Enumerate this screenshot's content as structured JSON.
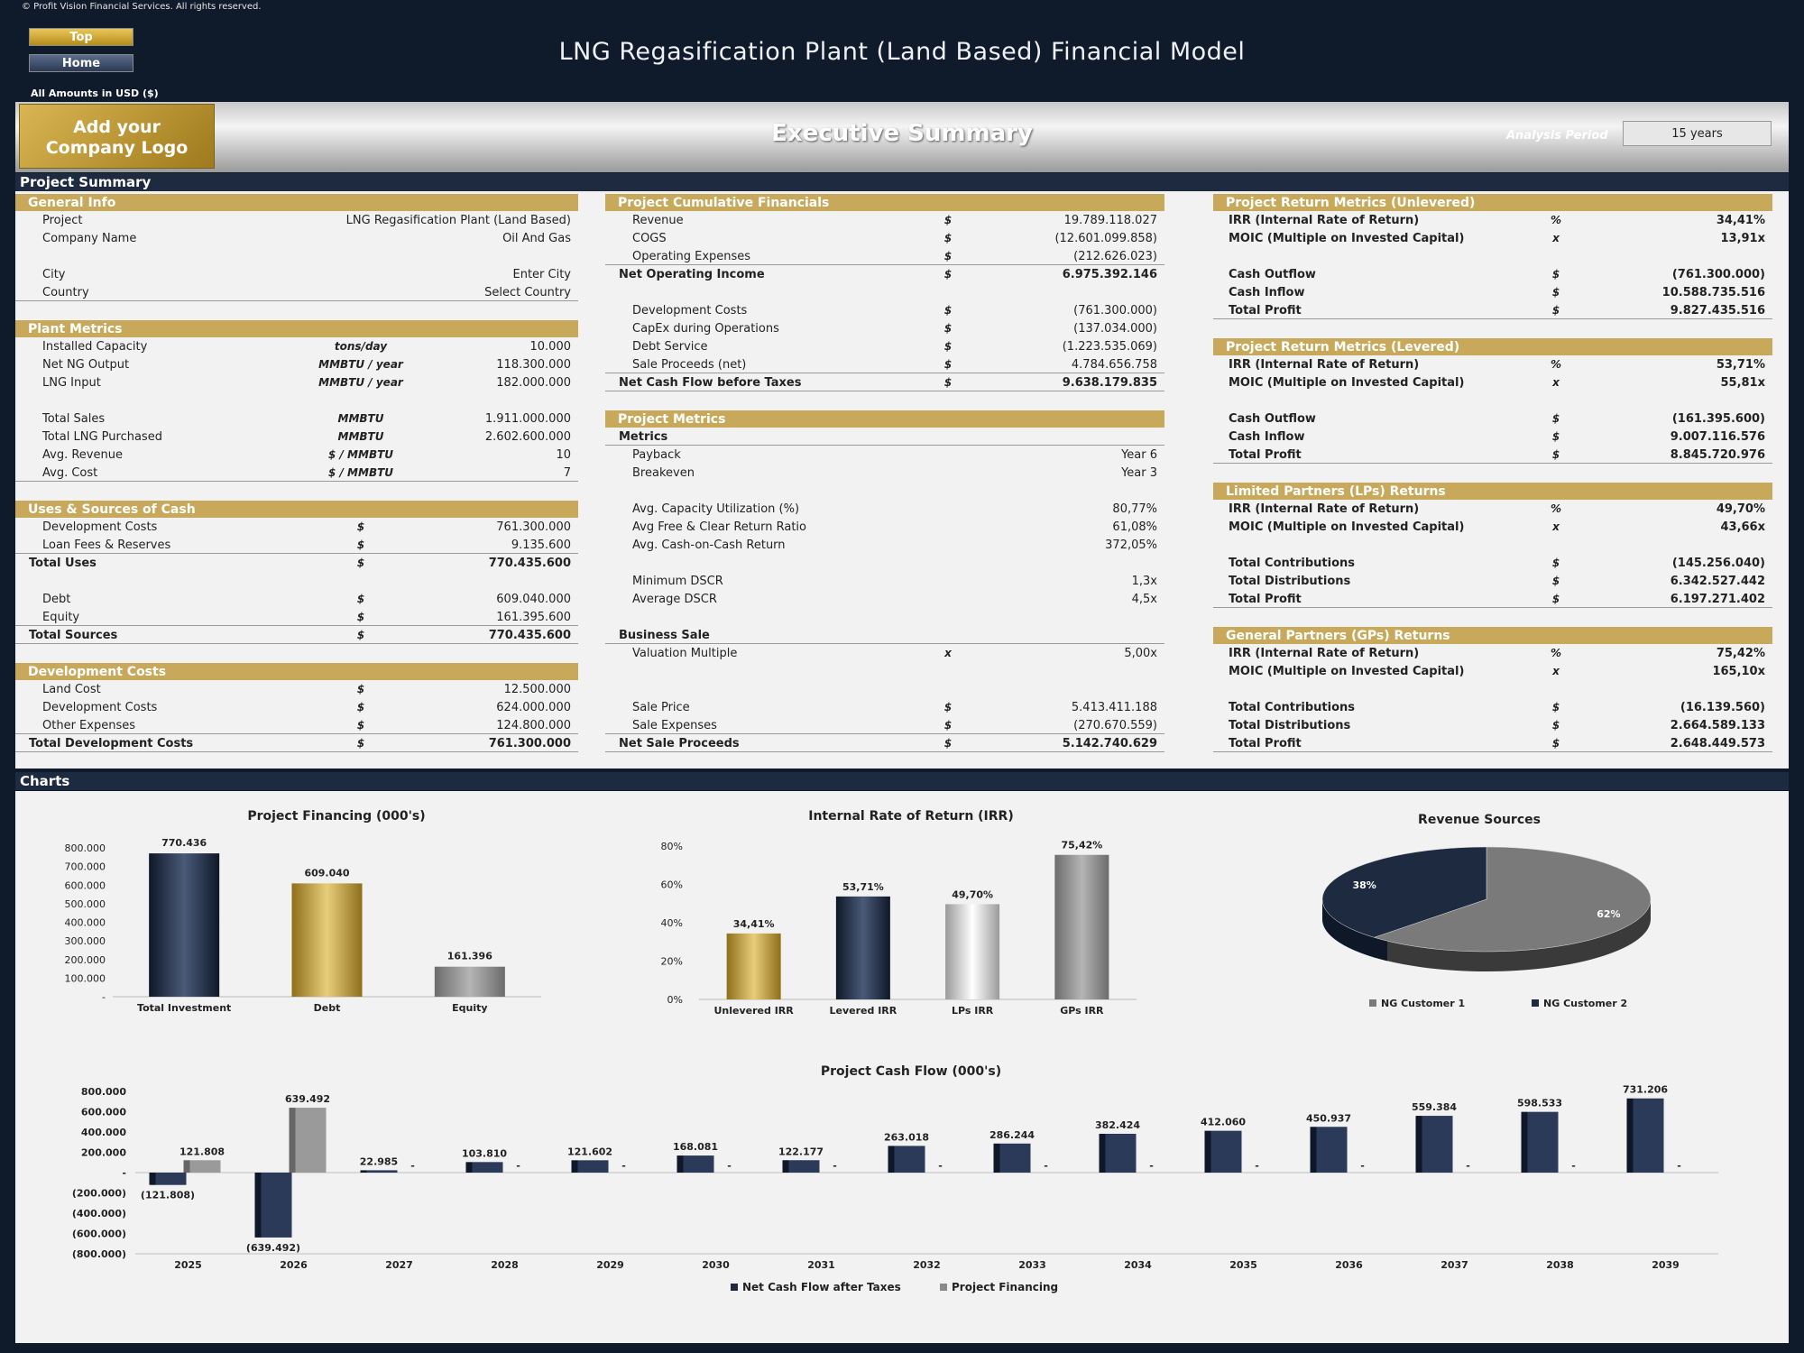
{
  "header": {
    "copyright": "© Profit Vision Financial Services. All rights reserved.",
    "nav_top": "Top",
    "nav_home": "Home",
    "title": "LNG Regasification Plant (Land Based) Financial Model",
    "amounts_note": "All Amounts in  USD ($)"
  },
  "banner": {
    "logo_line1": "Add your",
    "logo_line2": "Company Logo",
    "title": "Executive Summary",
    "analysis_period_label": "Analysis Period",
    "analysis_period_value": "15 years"
  },
  "sections": {
    "project_summary": "Project Summary",
    "charts": "Charts"
  },
  "general_info": {
    "title": "General Info",
    "rows": [
      {
        "label": "Project",
        "value": "LNG Regasification Plant (Land Based)"
      },
      {
        "label": "Company Name",
        "value": "Oil And Gas"
      },
      {
        "label": "City",
        "value": "Enter City"
      },
      {
        "label": "Country",
        "value": "Select Country"
      }
    ]
  },
  "plant_metrics": {
    "title": "Plant Metrics",
    "rows": [
      {
        "label": "Installed Capacity",
        "unit": "tons/day",
        "value": "10.000"
      },
      {
        "label": "Net NG Output",
        "unit": "MMBTU / year",
        "value": "118.300.000"
      },
      {
        "label": "LNG Input",
        "unit": "MMBTU / year",
        "value": "182.000.000"
      },
      {
        "label": "Total Sales",
        "unit": "MMBTU",
        "value": "1.911.000.000"
      },
      {
        "label": "Total LNG Purchased",
        "unit": "MMBTU",
        "value": "2.602.600.000"
      },
      {
        "label": "Avg. Revenue",
        "unit": "$ / MMBTU",
        "value": "10"
      },
      {
        "label": "Avg. Cost",
        "unit": "$ / MMBTU",
        "value": "7"
      }
    ]
  },
  "uses_sources": {
    "title": "Uses & Sources of Cash",
    "rows": [
      {
        "label": "Development Costs",
        "unit": "$",
        "value": "761.300.000"
      },
      {
        "label": "Loan Fees & Reserves",
        "unit": "$",
        "value": "9.135.600"
      },
      {
        "label": "Total Uses",
        "unit": "$",
        "value": "770.435.600"
      },
      {
        "label": "Debt",
        "unit": "$",
        "value": "609.040.000"
      },
      {
        "label": "Equity",
        "unit": "$",
        "value": "161.395.600"
      },
      {
        "label": "Total Sources",
        "unit": "$",
        "value": "770.435.600"
      }
    ]
  },
  "development_costs": {
    "title": "Development Costs",
    "rows": [
      {
        "label": "Land Cost",
        "unit": "$",
        "value": "12.500.000"
      },
      {
        "label": "Development Costs",
        "unit": "$",
        "value": "624.000.000"
      },
      {
        "label": "Other Expenses",
        "unit": "$",
        "value": "124.800.000"
      },
      {
        "label": "Total Development Costs",
        "unit": "$",
        "value": "761.300.000"
      }
    ]
  },
  "cumulative_financials": {
    "title": "Project Cumulative Financials",
    "rows": [
      {
        "label": "Revenue",
        "unit": "$",
        "value": "19.789.118.027"
      },
      {
        "label": "COGS",
        "unit": "$",
        "value": "(12.601.099.858)"
      },
      {
        "label": "Operating Expenses",
        "unit": "$",
        "value": "(212.626.023)"
      },
      {
        "label": "Net Operating Income",
        "unit": "$",
        "value": "6.975.392.146"
      },
      {
        "label": "Development Costs",
        "unit": "$",
        "value": "(761.300.000)"
      },
      {
        "label": "CapEx during Operations",
        "unit": "$",
        "value": "(137.034.000)"
      },
      {
        "label": "Debt Service",
        "unit": "$",
        "value": "(1.223.535.069)"
      },
      {
        "label": "Sale Proceeds (net)",
        "unit": "$",
        "value": "4.784.656.758"
      },
      {
        "label": "Net Cash Flow before Taxes",
        "unit": "$",
        "value": "9.638.179.835"
      }
    ]
  },
  "project_metrics": {
    "title": "Project Metrics",
    "metrics_header": "Metrics",
    "rows": [
      {
        "label": "Payback",
        "unit": "",
        "value": "Year 6"
      },
      {
        "label": "Breakeven",
        "unit": "",
        "value": "Year 3"
      },
      {
        "label": "Avg. Capacity Utilization (%)",
        "unit": "",
        "value": "80,77%"
      },
      {
        "label": "Avg Free & Clear Return Ratio",
        "unit": "",
        "value": "61,08%"
      },
      {
        "label": "Avg. Cash-on-Cash Return",
        "unit": "",
        "value": "372,05%"
      },
      {
        "label": "Minimum DSCR",
        "unit": "",
        "value": "1,3x"
      },
      {
        "label": "Average DSCR",
        "unit": "",
        "value": "4,5x"
      }
    ],
    "business_sale_header": "Business Sale",
    "sale_rows": [
      {
        "label": "Valuation Multiple",
        "unit": "x",
        "value": "5,00x"
      },
      {
        "label": "Sale Price",
        "unit": "$",
        "value": "5.413.411.188"
      },
      {
        "label": "Sale Expenses",
        "unit": "$",
        "value": "(270.670.559)"
      },
      {
        "label": "Net Sale Proceeds",
        "unit": "$",
        "value": "5.142.740.629"
      }
    ]
  },
  "return_unlevered": {
    "title": "Project Return Metrics (Unlevered)",
    "rows": [
      {
        "label": "IRR (Internal Rate of Return)",
        "unit": "%",
        "value": "34,41%"
      },
      {
        "label": "MOIC (Multiple on Invested Capital)",
        "unit": "x",
        "value": "13,91x"
      },
      {
        "label": "Cash Outflow",
        "unit": "$",
        "value": "(761.300.000)"
      },
      {
        "label": "Cash Inflow",
        "unit": "$",
        "value": "10.588.735.516"
      },
      {
        "label": "Total Profit",
        "unit": "$",
        "value": "9.827.435.516"
      }
    ]
  },
  "return_levered": {
    "title": "Project Return Metrics (Levered)",
    "rows": [
      {
        "label": "IRR (Internal Rate of Return)",
        "unit": "%",
        "value": "53,71%"
      },
      {
        "label": "MOIC (Multiple on Invested Capital)",
        "unit": "x",
        "value": "55,81x"
      },
      {
        "label": "Cash Outflow",
        "unit": "$",
        "value": "(161.395.600)"
      },
      {
        "label": "Cash Inflow",
        "unit": "$",
        "value": "9.007.116.576"
      },
      {
        "label": "Total Profit",
        "unit": "$",
        "value": "8.845.720.976"
      }
    ]
  },
  "lp_returns": {
    "title": "Limited Partners (LPs) Returns",
    "rows": [
      {
        "label": "IRR (Internal Rate of Return)",
        "unit": "%",
        "value": "49,70%"
      },
      {
        "label": "MOIC (Multiple on Invested Capital)",
        "unit": "x",
        "value": "43,66x"
      },
      {
        "label": "Total Contributions",
        "unit": "$",
        "value": "(145.256.040)"
      },
      {
        "label": "Total Distributions",
        "unit": "$",
        "value": "6.342.527.442"
      },
      {
        "label": "Total Profit",
        "unit": "$",
        "value": "6.197.271.402"
      }
    ]
  },
  "gp_returns": {
    "title": "General Partners (GPs) Returns",
    "rows": [
      {
        "label": "IRR (Internal Rate of Return)",
        "unit": "%",
        "value": "75,42%"
      },
      {
        "label": "MOIC (Multiple on Invested Capital)",
        "unit": "x",
        "value": "165,10x"
      },
      {
        "label": "Total Contributions",
        "unit": "$",
        "value": "(16.139.560)"
      },
      {
        "label": "Total Distributions",
        "unit": "$",
        "value": "2.664.589.133"
      },
      {
        "label": "Total Profit",
        "unit": "$",
        "value": "2.648.449.573"
      }
    ]
  },
  "colors": {
    "navy": "#1d2a40",
    "gold": "#c8a95b",
    "gray": "#8a8a8a"
  },
  "chart_data": [
    {
      "id": "financing",
      "type": "bar",
      "title": "Project Financing (000's)",
      "categories": [
        "Total Investment",
        "Debt",
        "Equity"
      ],
      "values": [
        770436,
        609040,
        161396
      ],
      "labels": [
        "770.436",
        "609.040",
        "161.396"
      ],
      "colors": [
        "#1d2a40",
        "#b8952f",
        "#8a8a8a"
      ],
      "ylim": [
        0,
        800000
      ],
      "yticks": [
        "-",
        "100.000",
        "200.000",
        "300.000",
        "400.000",
        "500.000",
        "600.000",
        "700.000",
        "800.000"
      ]
    },
    {
      "id": "irr",
      "type": "bar",
      "title": "Internal Rate of Return (IRR)",
      "categories": [
        "Unlevered IRR",
        "Levered IRR",
        "LPs IRR",
        "GPs IRR"
      ],
      "values": [
        34.41,
        53.71,
        49.7,
        75.42
      ],
      "labels": [
        "34,41%",
        "53,71%",
        "49,70%",
        "75,42%"
      ],
      "colors": [
        "#b8952f",
        "#1d2a40",
        "#cfcfcf",
        "#8a8a8a"
      ],
      "ylim": [
        0,
        80
      ],
      "yticks": [
        "0%",
        "20%",
        "40%",
        "60%",
        "80%"
      ]
    },
    {
      "id": "revenue",
      "type": "pie",
      "title": "Revenue Sources",
      "series": [
        {
          "name": "NG Customer 1",
          "value": 62,
          "label": "62%",
          "color": "#7a7a7a"
        },
        {
          "name": "NG Customer 2",
          "value": 38,
          "label": "38%",
          "color": "#1d2a40"
        }
      ]
    },
    {
      "id": "cashflow",
      "type": "bar",
      "title": "Project Cash Flow (000's)",
      "categories": [
        "2025",
        "2026",
        "2027",
        "2028",
        "2029",
        "2030",
        "2031",
        "2032",
        "2033",
        "2034",
        "2035",
        "2036",
        "2037",
        "2038",
        "2039"
      ],
      "series": [
        {
          "name": "Net Cash Flow after Taxes",
          "color": "#1d2a40",
          "values": [
            -121808,
            -639492,
            22985,
            103810,
            121602,
            168081,
            122177,
            263018,
            286244,
            382424,
            412060,
            450937,
            559384,
            598533,
            731206
          ],
          "labels": [
            "(121.808)",
            "(639.492)",
            "22.985",
            "103.810",
            "121.602",
            "168.081",
            "122.177",
            "263.018",
            "286.244",
            "382.424",
            "412.060",
            "450.937",
            "559.384",
            "598.533",
            "731.206"
          ]
        },
        {
          "name": "Project Financing",
          "color": "#8a8a8a",
          "values": [
            121808,
            639492,
            0,
            0,
            0,
            0,
            0,
            0,
            0,
            0,
            0,
            0,
            0,
            0,
            0
          ],
          "labels": [
            "121.808",
            "639.492",
            "-",
            "-",
            "-",
            "-",
            "-",
            "-",
            "-",
            "-",
            "-",
            "-",
            "-",
            "-",
            "-"
          ]
        }
      ],
      "ylim": [
        -800000,
        800000
      ],
      "yticks": [
        "(800.000)",
        "(600.000)",
        "(400.000)",
        "(200.000)",
        "-",
        "200.000",
        "400.000",
        "600.000",
        "800.000"
      ]
    }
  ]
}
